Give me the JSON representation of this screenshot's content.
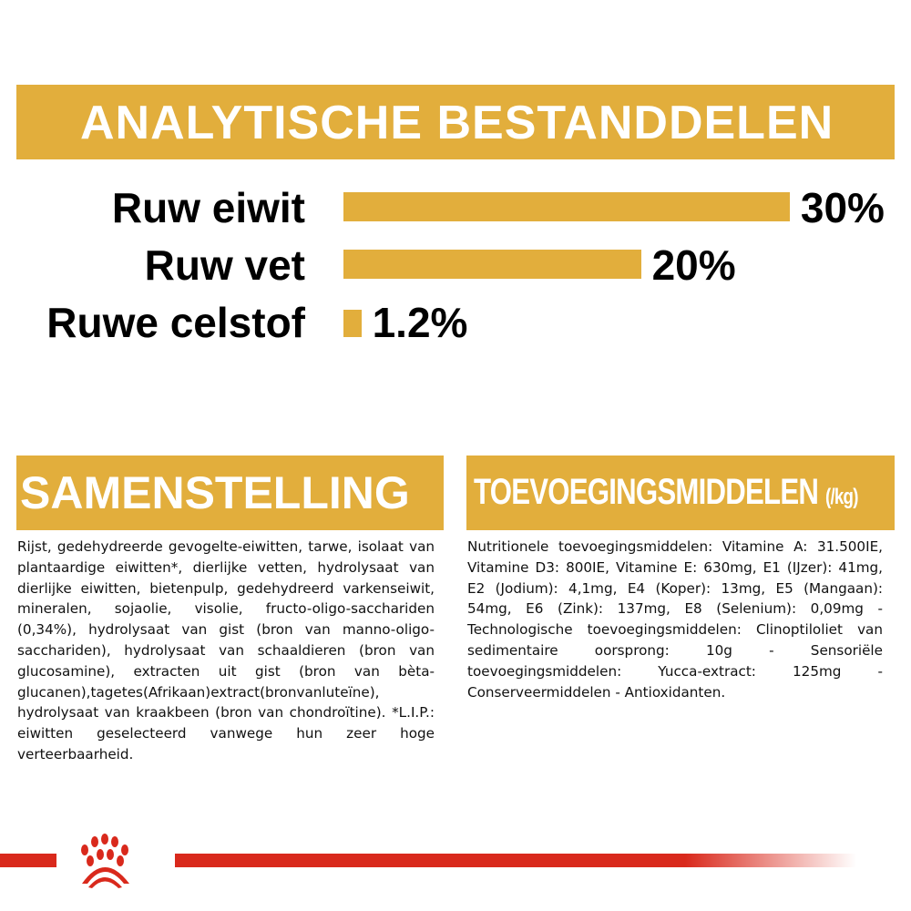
{
  "analysis": {
    "title": "ANALYTISCHE BESTANDDELEN",
    "items": [
      {
        "label": "Ruw eiwit",
        "value": 30,
        "display": "30%"
      },
      {
        "label": "Ruw vet",
        "value": 20,
        "display": "20%"
      },
      {
        "label": "Ruwe celstof",
        "value": 1.2,
        "display": "1.2%"
      }
    ]
  },
  "chart_data": {
    "type": "bar",
    "orientation": "horizontal",
    "categories": [
      "Ruw eiwit",
      "Ruw vet",
      "Ruwe celstof"
    ],
    "values": [
      30,
      20,
      1.2
    ],
    "title": "ANALYTISCHE BESTANDDELEN",
    "data_labels": [
      "30%",
      "20%",
      "1.2%"
    ],
    "color": "#e2ae3c",
    "grid": false
  },
  "composition": {
    "title": "SAMENSTELLING",
    "text": "Rijst, gedehydreerde gevogelte-eiwitten, tarwe, isolaat van plantaardige eiwitten*, dierlijke vetten, hydrolysaat van dierlijke eiwitten, bietenpulp, gedehydreerd varkenseiwit, mineralen, sojaolie, visolie, fructo-oligo-sacchariden (0,34%), hydrolysaat van gist (bron van manno-oligo-sacchariden), hydrolysaat van schaaldieren (bron van glucosamine), extracten uit gist (bron van bèta-glucanen),tagetes(Afrikaan)extract(bronvanluteïne), hydrolysaat van kraakbeen (bron van chondroïtine). *L.I.P.: eiwitten geselecteerd vanwege hun zeer hoge verteerbaarheid."
  },
  "additives": {
    "title": "TOEVOEGINGSMIDDELEN",
    "unit": "(/kg)",
    "text": "Nutritionele toevoegingsmiddelen: Vitamine A: 31.500IE, Vitamine D3: 800IE, Vitamine E: 630mg, E1 (IJzer): 41mg, E2 (Jodium): 4,1mg, E4 (Koper): 13mg, E5 (Mangaan): 54mg, E6 (Zink): 137mg, E8 (Selenium): 0,09mg - Technologische toevoegingsmiddelen: Clinoptiloliet van sedimentaire oorsprong: 10g - Sensoriële toevoegingsmiddelen: Yucca-extract: 125mg - Conserveermiddelen - Antioxidanten."
  },
  "colors": {
    "accent": "#e2ae3c",
    "brand_red": "#d9291c"
  },
  "footer": {
    "logo": "royal-crown-logo"
  }
}
